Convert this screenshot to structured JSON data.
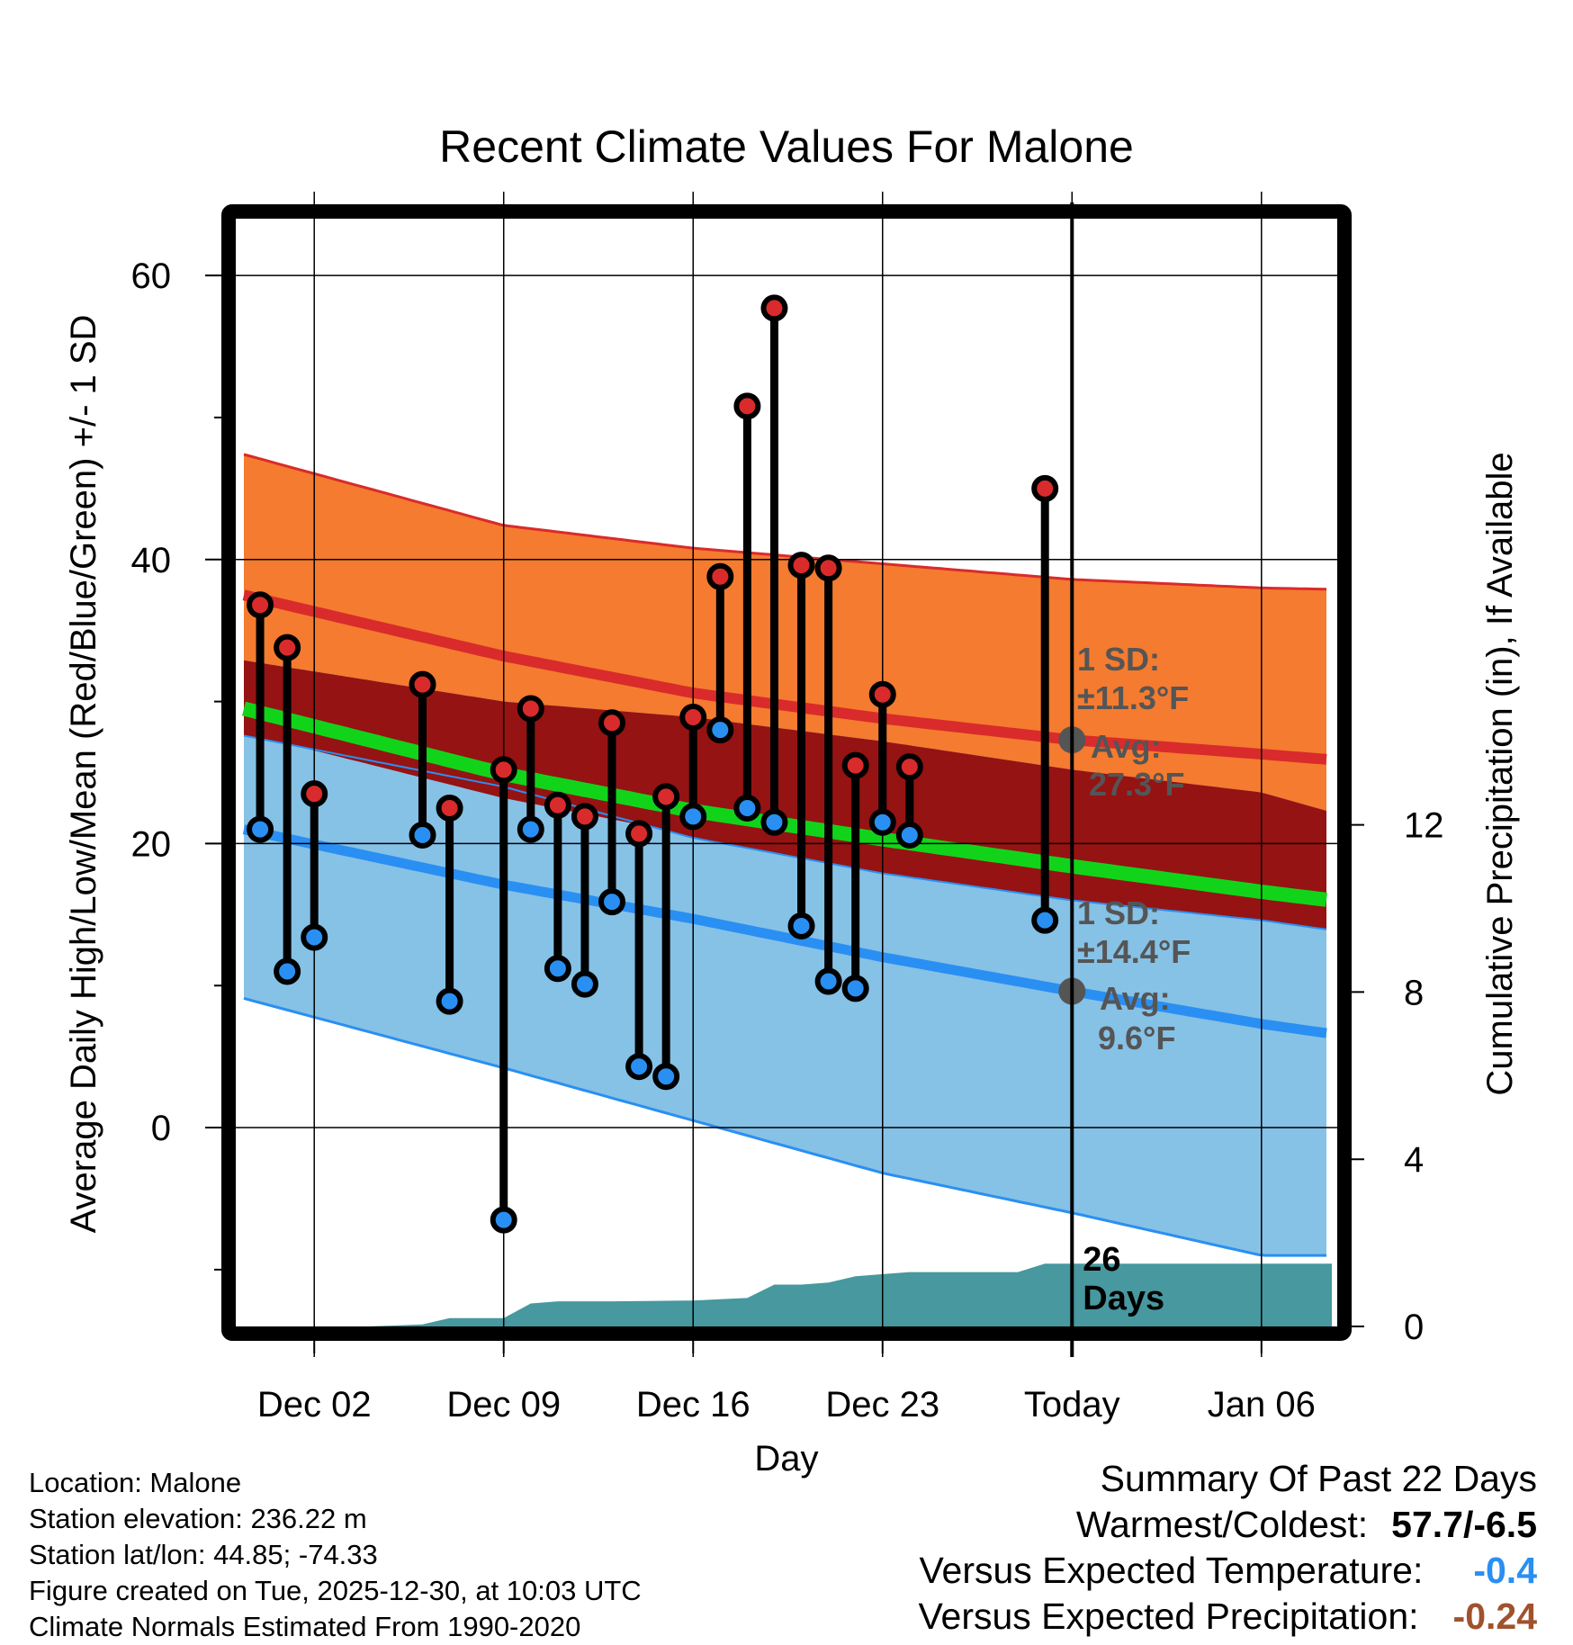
{
  "chart_data": {
    "type": "line",
    "title": "Recent Climate Values For Malone",
    "xlabel": "Day",
    "ylabel": "Average Daily High/Low/Mean (Red/Blue/Green) +/- 1 SD",
    "ylabel_right": "Cumulative Precipitation (in), If Available",
    "ylim": [
      -14,
      64
    ],
    "ylim_right": [
      0,
      26.5
    ],
    "x_range": [
      -2.9,
      37.8
    ],
    "y_ticks": [
      0,
      20,
      40,
      60
    ],
    "y_minor_ticks": [
      -10,
      10,
      30,
      50
    ],
    "y_ticks_right": [
      0,
      4,
      8,
      12
    ],
    "x_ticks": [
      {
        "x": 0,
        "label": "Dec 02"
      },
      {
        "x": 7,
        "label": "Dec 09"
      },
      {
        "x": 14,
        "label": "Dec 16"
      },
      {
        "x": 21,
        "label": "Dec 23"
      },
      {
        "x": 28,
        "label": "Today"
      },
      {
        "x": 35,
        "label": "Jan 06"
      }
    ],
    "today_x": 28,
    "normals": {
      "x": [
        -2.6,
        7,
        14,
        21,
        28,
        35,
        37.6
      ],
      "high_mean": [
        37.5,
        33.2,
        30.6,
        28.8,
        27.3,
        26.3,
        25.9
      ],
      "high_plus_sd": [
        47.4,
        42.4,
        40.8,
        39.7,
        38.6,
        38.0,
        37.9
      ],
      "mean": [
        29.5,
        24.9,
        22.3,
        20.3,
        18.4,
        16.6,
        16.0
      ],
      "low_mean": [
        21.0,
        17.1,
        14.7,
        12.0,
        9.6,
        7.3,
        6.6
      ],
      "low_minus_sd": [
        9.1,
        4.2,
        0.5,
        -3.2,
        -6.0,
        -9.0,
        -9.0
      ],
      "high_sd_label": "1 SD:",
      "high_sd_value": "±11.3°F",
      "high_avg_label": "Avg:",
      "high_avg_value": "27.3°F",
      "low_sd_label": "1 SD:",
      "low_sd_value": "±14.4°F",
      "low_avg_label": "Avg:",
      "low_avg_value": "9.6°F"
    },
    "observations": {
      "x": [
        -2,
        -1,
        0,
        4,
        5,
        7,
        8,
        9,
        10,
        11,
        12,
        13,
        14,
        15,
        16,
        17,
        18,
        19,
        20,
        21,
        22,
        27
      ],
      "high": [
        36.8,
        33.8,
        23.5,
        31.2,
        22.5,
        25.2,
        29.5,
        22.7,
        21.9,
        28.5,
        20.7,
        23.3,
        28.9,
        38.8,
        50.8,
        57.7,
        39.6,
        39.4,
        25.5,
        30.5,
        25.4,
        45.0
      ],
      "low": [
        21.0,
        11.0,
        13.4,
        20.6,
        8.9,
        -6.5,
        21.0,
        11.2,
        10.1,
        15.9,
        4.3,
        3.6,
        21.9,
        28.0,
        22.5,
        21.5,
        14.2,
        10.3,
        9.8,
        21.5,
        20.6,
        14.6
      ]
    },
    "precipitation": {
      "x": [
        -2.6,
        2.0,
        4.0,
        5.0,
        7.0,
        8.0,
        9.0,
        11.0,
        14.0,
        15.0,
        16.0,
        17.0,
        18.0,
        19.0,
        20.0,
        21.0,
        22.0,
        23.0,
        26.0,
        27.0,
        28.0,
        37.6
      ],
      "cumulative": [
        0,
        0,
        0.05,
        0.2,
        0.2,
        0.55,
        0.6,
        0.6,
        0.62,
        0.65,
        0.68,
        1.0,
        1.0,
        1.05,
        1.2,
        1.25,
        1.3,
        1.3,
        1.3,
        1.5,
        1.5,
        1.5
      ]
    },
    "days_label_line1": "26",
    "days_label_line2": "Days",
    "colors": {
      "high_band": "#f47b2f",
      "high_line": "#d92b2b",
      "mean_band": "#951313",
      "mean_line": "#11d41a",
      "low_band": "#86c1e6",
      "low_line": "#2a8ff2",
      "precip": "#47989f",
      "high_marker": "#d92b2b",
      "low_marker": "#2a8ff2"
    }
  },
  "info": {
    "location": "Location: Malone",
    "elevation": "Station elevation: 236.22 m",
    "latlon": "Station lat/lon: 44.85; -74.33",
    "created": "Figure created on Tue, 2025-12-30, at 10:03 UTC",
    "normals": "Climate Normals Estimated From 1990-2020"
  },
  "summary": {
    "title": "Summary Of Past 22 Days",
    "warm_cold_label": "Warmest/Coldest:",
    "warm_cold_value": "57.7/-6.5",
    "temp_label": "Versus Expected Temperature:",
    "temp_value": "-0.4",
    "temp_color": "#2a8ff2",
    "precip_label": "Versus Expected Precipitation:",
    "precip_value": "-0.24",
    "precip_color": "#a0522d"
  }
}
